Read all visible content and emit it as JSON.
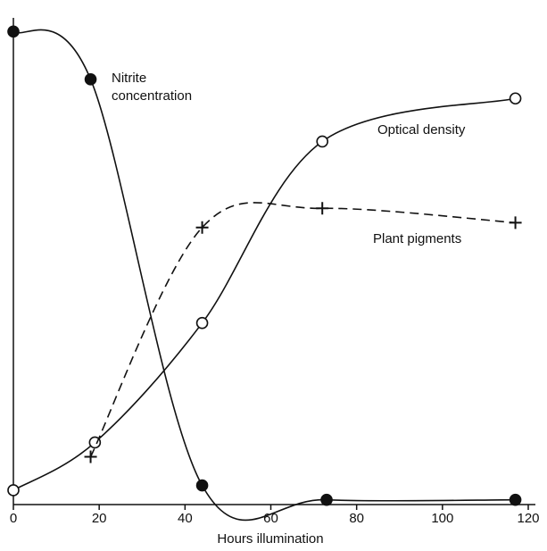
{
  "chart_data": {
    "type": "line",
    "x_label": "Hours illumination",
    "xlim": [
      0,
      120
    ],
    "xticks": [
      0,
      20,
      40,
      60,
      80,
      100,
      120
    ],
    "ylim": [
      0,
      100
    ],
    "series": [
      {
        "name": "Nitrite concentration",
        "color": "#111111",
        "marker": "filled-circle",
        "line_style": "solid",
        "x": [
          0,
          18,
          44,
          73,
          117
        ],
        "values": [
          99,
          89,
          4,
          1,
          1
        ]
      },
      {
        "name": "Optical density",
        "color": "#111111",
        "marker": "open-circle",
        "line_style": "solid",
        "x": [
          0,
          19,
          44,
          72,
          117
        ],
        "values": [
          3,
          13,
          38,
          76,
          85
        ]
      },
      {
        "name": "Plant pigments",
        "color": "#111111",
        "marker": "plus",
        "line_style": "dashed",
        "x": [
          18,
          44,
          72,
          117
        ],
        "values": [
          10,
          58,
          62,
          59
        ]
      }
    ]
  }
}
